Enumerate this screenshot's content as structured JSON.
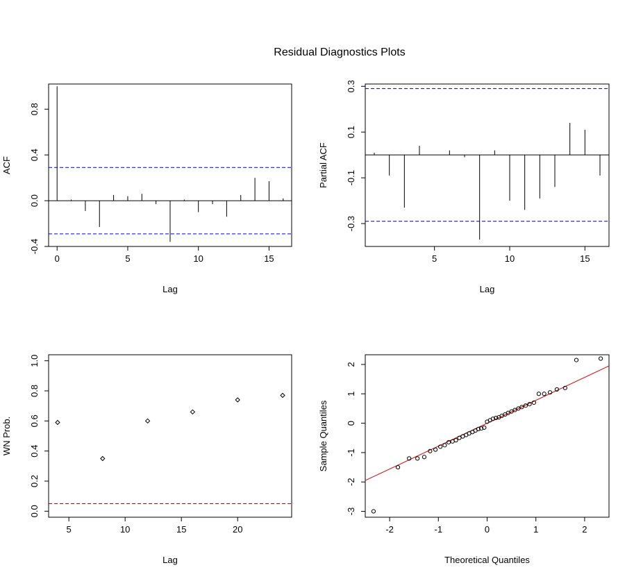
{
  "figure": {
    "title": "Residual Diagnostics Plots"
  },
  "colors": {
    "frame": "#000000",
    "blue_bound": "#0000cc",
    "red_bound": "#cc0000",
    "qq_line": "#dd0000",
    "points": "#000000"
  },
  "chart_data": [
    {
      "id": "acf",
      "type": "bar",
      "subtype": "lollipop-spikes",
      "xlabel": "Lag",
      "ylabel": "ACF",
      "xlim": [
        -0.6,
        16.6
      ],
      "ylim": [
        -0.4,
        1.02
      ],
      "xticks": [
        0,
        5,
        10,
        15
      ],
      "yticks": [
        -0.4,
        0.0,
        0.4,
        0.8
      ],
      "ytick_labels": [
        "-0.4",
        "0.0",
        "0.4",
        "0.8"
      ],
      "zero_line": true,
      "bounds": [
        0.29,
        -0.29
      ],
      "bound_color": "blue",
      "x": [
        0,
        1,
        2,
        3,
        4,
        5,
        6,
        7,
        8,
        9,
        10,
        11,
        12,
        13,
        14,
        15,
        16
      ],
      "values": [
        1.0,
        0.01,
        -0.09,
        -0.23,
        0.05,
        0.04,
        0.06,
        -0.03,
        -0.36,
        0.01,
        -0.1,
        -0.03,
        -0.14,
        0.05,
        0.2,
        0.17,
        0.02
      ]
    },
    {
      "id": "pacf",
      "type": "bar",
      "subtype": "lollipop-spikes",
      "xlabel": "Lag",
      "ylabel": "Partial ACF",
      "xlim": [
        0.4,
        16.6
      ],
      "ylim": [
        -0.4,
        0.31
      ],
      "xticks": [
        5,
        10,
        15
      ],
      "yticks": [
        -0.3,
        -0.1,
        0.1,
        0.3
      ],
      "ytick_labels": [
        "-0.3",
        "-0.1",
        "0.1",
        "0.3"
      ],
      "zero_line": true,
      "bounds": [
        0.29,
        -0.29
      ],
      "bound_color": "blue",
      "x": [
        1,
        2,
        3,
        4,
        5,
        6,
        7,
        8,
        9,
        10,
        11,
        12,
        13,
        14,
        15,
        16
      ],
      "values": [
        0.01,
        -0.09,
        -0.23,
        0.04,
        0.0,
        0.02,
        -0.01,
        -0.37,
        0.02,
        -0.2,
        -0.24,
        -0.19,
        -0.14,
        0.14,
        0.11,
        -0.09
      ]
    },
    {
      "id": "ljungbox",
      "type": "scatter",
      "xlabel": "Lag",
      "ylabel": "WN Prob.",
      "xlim": [
        3.2,
        24.8
      ],
      "ylim": [
        -0.04,
        1.04
      ],
      "xticks": [
        5,
        10,
        15,
        20
      ],
      "yticks": [
        0.0,
        0.2,
        0.4,
        0.6,
        0.8,
        1.0
      ],
      "ytick_labels": [
        "0.0",
        "0.2",
        "0.4",
        "0.6",
        "0.8",
        "1.0"
      ],
      "threshold": 0.05,
      "threshold_color": "red",
      "x": [
        4,
        8,
        12,
        16,
        20,
        24
      ],
      "y": [
        0.59,
        0.35,
        0.6,
        0.66,
        0.74,
        0.77
      ]
    },
    {
      "id": "qqplot",
      "type": "scatter",
      "xlabel": "Theoretical Quantiles",
      "ylabel": "Sample Quantiles",
      "xlim": [
        -2.5,
        2.5
      ],
      "ylim": [
        -3.2,
        2.33
      ],
      "xticks": [
        -2,
        -1,
        0,
        1,
        2
      ],
      "yticks": [
        -3,
        -2,
        -1,
        0,
        1,
        2
      ],
      "ytick_labels": [
        "-3",
        "-2",
        "-1",
        "0",
        "1",
        "2"
      ],
      "reference_line": {
        "slope": 0.78,
        "intercept": 0.0,
        "color": "red"
      },
      "x": [
        -2.33,
        -1.83,
        -1.6,
        -1.43,
        -1.29,
        -1.17,
        -1.06,
        -0.96,
        -0.87,
        -0.79,
        -0.71,
        -0.64,
        -0.57,
        -0.5,
        -0.43,
        -0.37,
        -0.3,
        -0.24,
        -0.18,
        -0.12,
        -0.06,
        0.0,
        0.06,
        0.12,
        0.18,
        0.24,
        0.3,
        0.37,
        0.43,
        0.5,
        0.57,
        0.64,
        0.71,
        0.79,
        0.87,
        0.96,
        1.06,
        1.17,
        1.29,
        1.43,
        1.6,
        1.83,
        2.33
      ],
      "y": [
        -3.0,
        -1.5,
        -1.2,
        -1.2,
        -1.15,
        -0.95,
        -0.9,
        -0.8,
        -0.75,
        -0.65,
        -0.62,
        -0.58,
        -0.5,
        -0.45,
        -0.4,
        -0.35,
        -0.3,
        -0.25,
        -0.2,
        -0.18,
        -0.15,
        0.05,
        0.1,
        0.15,
        0.18,
        0.2,
        0.25,
        0.3,
        0.35,
        0.4,
        0.45,
        0.5,
        0.55,
        0.6,
        0.65,
        0.7,
        1.0,
        1.0,
        1.05,
        1.15,
        1.2,
        2.15,
        2.2
      ]
    }
  ]
}
